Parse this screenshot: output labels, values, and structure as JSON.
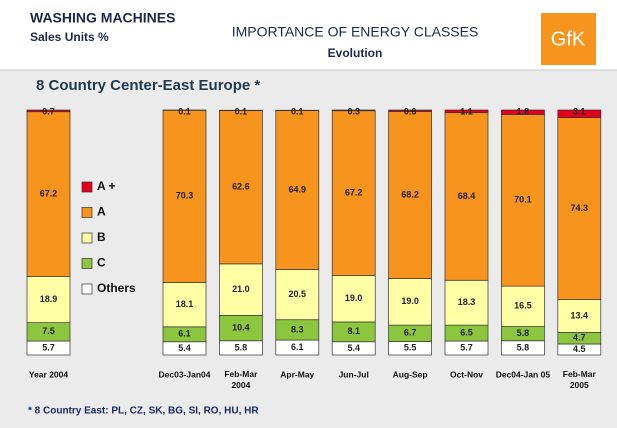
{
  "header": {
    "title": "WASHING MACHINES",
    "subtitle": "Sales Units %",
    "center_title": "IMPORTANCE OF ENERGY CLASSES",
    "center_subtitle": "Evolution",
    "logo": "GfK"
  },
  "chart_data": {
    "type": "stacked_bar",
    "title": "8 Country Center-East Europe *",
    "footnote": "* 8 Country East: PL, CZ, SK, BG, SI, RO, HU, HR",
    "categories": [
      "Year 2004",
      "Dec03-Jan04",
      "Feb-Mar\n2004",
      "Apr-May",
      "Jun-Jul",
      "Aug-Sep",
      "Oct-Nov",
      "Dec04-Jan 05",
      "Feb-Mar\n2005"
    ],
    "ylim": [
      0,
      100
    ],
    "legend": "left",
    "series": [
      {
        "name": "Others",
        "color": "#ffffff",
        "values": [
          5.7,
          5.4,
          5.8,
          6.1,
          5.4,
          5.5,
          5.7,
          5.8,
          4.5
        ],
        "value_labels": [
          "5.7",
          "5.4",
          "5.8",
          "6.1",
          "5.4",
          "5.5",
          "5.7",
          "5.8",
          "4.5"
        ]
      },
      {
        "name": "C",
        "color": "#8cc63f",
        "values": [
          7.5,
          6.1,
          10.4,
          8.3,
          8.1,
          6.7,
          6.5,
          5.8,
          4.7
        ],
        "value_labels": [
          "7.5",
          "6.1",
          "10.4",
          "8.3",
          "8.1",
          "6.7",
          "6.5",
          "5.8",
          "4.7"
        ]
      },
      {
        "name": "B",
        "color": "#ffffa6",
        "values": [
          18.9,
          18.1,
          21.0,
          20.5,
          19.0,
          19.0,
          18.3,
          16.5,
          13.4
        ],
        "value_labels": [
          "18.9",
          "18.1",
          "21.0",
          "20.5",
          "19.0",
          "19.0",
          "18.3",
          "16.5",
          "13.4"
        ]
      },
      {
        "name": "A",
        "color": "#f7941d",
        "values": [
          67.2,
          70.3,
          62.6,
          64.9,
          67.2,
          68.2,
          68.4,
          70.1,
          74.3
        ],
        "value_labels": [
          "67.2",
          "70.3",
          "62.6",
          "64.9",
          "67.2",
          "68.2",
          "68.4",
          "70.1",
          "74.3"
        ]
      },
      {
        "name": "A +",
        "color": "#e3001b",
        "values": [
          0.7,
          0.1,
          0.1,
          0.1,
          0.3,
          0.6,
          1.1,
          1.8,
          3.1
        ],
        "value_labels": [
          "0.7",
          "0.1",
          "0.1",
          "0.1",
          "0.3",
          "0.6",
          "1.1",
          "1.8",
          "3.1"
        ]
      }
    ]
  }
}
